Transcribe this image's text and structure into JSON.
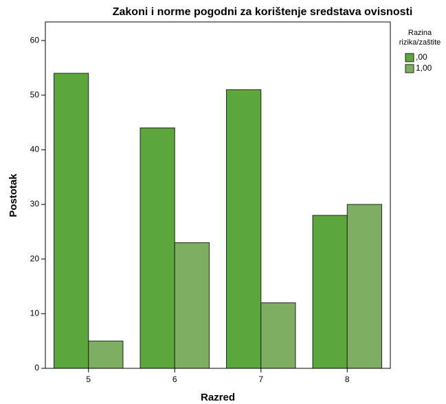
{
  "chart_data": {
    "type": "bar",
    "title": "Zakoni i norme pogodni za korištenje sredstava ovisnosti",
    "x_label": "Razred",
    "y_label": "Postotak",
    "legend_title": [
      "Razina",
      "rizika/zaštite"
    ],
    "categories": [
      "5",
      "6",
      "7",
      "8"
    ],
    "series": [
      {
        "name": ",00",
        "color": "#5ca73c",
        "values": [
          54,
          44,
          51,
          28
        ]
      },
      {
        "name": "1,00",
        "color": "#7eae62",
        "values": [
          5,
          23,
          12,
          30
        ]
      }
    ],
    "ylim": [
      0,
      63.4
    ],
    "yticks": [
      0,
      10,
      20,
      30,
      40,
      50,
      60
    ],
    "grid": false,
    "legend": "right"
  }
}
